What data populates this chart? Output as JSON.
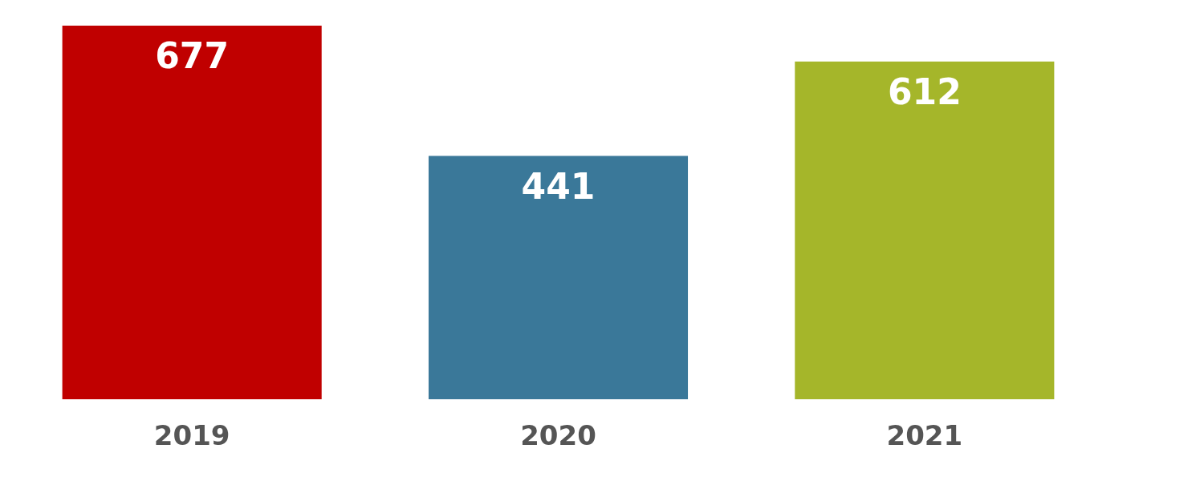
{
  "chart_data": {
    "type": "bar",
    "categories": [
      "2019",
      "2020",
      "2021"
    ],
    "values": [
      677,
      441,
      612
    ],
    "colors": [
      "#c00000",
      "#3a7899",
      "#a5b62a"
    ],
    "data_labels": true,
    "grid": false,
    "legend": false
  }
}
